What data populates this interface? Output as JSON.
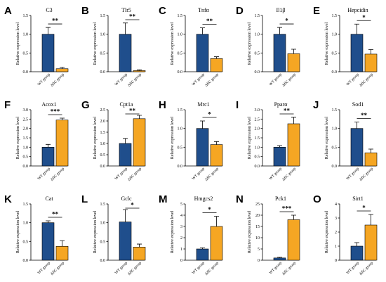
{
  "figure": {
    "category_labels": [
      "WT group",
      "ΔflC group"
    ]
  },
  "colors": {
    "wt": "#1f4e8c",
    "ko": "#f5a623"
  },
  "chart_data": [
    {
      "type": "bar",
      "panel": "A",
      "title": "C3",
      "ylabel": "Relative expression level",
      "ylim": [
        0,
        1.5
      ],
      "yticks": [
        "0.0",
        "0.5",
        "1.0",
        "1.5"
      ],
      "categories": [
        "WT group",
        "ΔflC group"
      ],
      "values": [
        1.0,
        0.08
      ],
      "errors": [
        0.18,
        0.04
      ],
      "significance": "**"
    },
    {
      "type": "bar",
      "panel": "B",
      "title": "Tlr5",
      "ylabel": "Relative expression level",
      "ylim": [
        0,
        1.5
      ],
      "yticks": [
        "0.0",
        "0.5",
        "1.0",
        "1.5"
      ],
      "categories": [
        "WT group",
        "ΔflC group"
      ],
      "values": [
        1.0,
        0.03
      ],
      "errors": [
        0.3,
        0.02
      ],
      "significance": "**"
    },
    {
      "type": "bar",
      "panel": "C",
      "title": "Tnfα",
      "ylabel": "Relative expression level",
      "ylim": [
        0,
        1.5
      ],
      "yticks": [
        "0.0",
        "0.5",
        "1.0",
        "1.5"
      ],
      "categories": [
        "WT group",
        "ΔflC group"
      ],
      "values": [
        1.0,
        0.35
      ],
      "errors": [
        0.17,
        0.05
      ],
      "significance": "**"
    },
    {
      "type": "bar",
      "panel": "D",
      "title": "Il1β",
      "ylabel": "Relative expression level",
      "ylim": [
        0,
        1.5
      ],
      "yticks": [
        "0.0",
        "0.5",
        "1.0",
        "1.5"
      ],
      "categories": [
        "WT group",
        "ΔflC group"
      ],
      "values": [
        1.0,
        0.48
      ],
      "errors": [
        0.18,
        0.12
      ],
      "significance": "*"
    },
    {
      "type": "bar",
      "panel": "E",
      "title": "Hepcidin",
      "ylabel": "Relative expression level",
      "ylim": [
        0,
        1.5
      ],
      "yticks": [
        "0.0",
        "0.5",
        "1.0",
        "1.5"
      ],
      "categories": [
        "WT group",
        "ΔflC group"
      ],
      "values": [
        1.0,
        0.47
      ],
      "errors": [
        0.27,
        0.12
      ],
      "significance": "*"
    },
    {
      "type": "bar",
      "panel": "F",
      "title": "Acox1",
      "ylabel": "Relative expression level",
      "ylim": [
        0,
        3.0
      ],
      "yticks": [
        "0.0",
        "0.5",
        "1.0",
        "1.5",
        "2.0",
        "2.5",
        "3.0"
      ],
      "categories": [
        "WT group",
        "ΔflC group"
      ],
      "values": [
        1.0,
        2.45
      ],
      "errors": [
        0.15,
        0.1
      ],
      "significance": "***"
    },
    {
      "type": "bar",
      "panel": "G",
      "title": "Cpt1a",
      "ylabel": "Relative expression level",
      "ylim": [
        0,
        2.5
      ],
      "yticks": [
        "0.0",
        "0.5",
        "1.0",
        "1.5",
        "2.0",
        "2.5"
      ],
      "categories": [
        "WT group",
        "ΔflC group"
      ],
      "values": [
        1.0,
        2.1
      ],
      "errors": [
        0.22,
        0.15
      ],
      "significance": "**"
    },
    {
      "type": "bar",
      "panel": "H",
      "title": "Mrc1",
      "ylabel": "Relative expression level",
      "ylim": [
        0,
        1.5
      ],
      "yticks": [
        "0.0",
        "0.5",
        "1.0",
        "1.5"
      ],
      "categories": [
        "WT group",
        "ΔflC group"
      ],
      "values": [
        1.0,
        0.57
      ],
      "errors": [
        0.2,
        0.08
      ],
      "significance": "*"
    },
    {
      "type": "bar",
      "panel": "I",
      "title": "Pparα",
      "ylabel": "Relative expression level",
      "ylim": [
        0,
        3.0
      ],
      "yticks": [
        "0.0",
        "0.5",
        "1.0",
        "1.5",
        "2.0",
        "2.5",
        "3.0"
      ],
      "categories": [
        "WT group",
        "ΔflC group"
      ],
      "values": [
        1.0,
        2.25
      ],
      "errors": [
        0.08,
        0.35
      ],
      "significance": "**"
    },
    {
      "type": "bar",
      "panel": "J",
      "title": "Sod1",
      "ylabel": "Relative expression level",
      "ylim": [
        0,
        1.5
      ],
      "yticks": [
        "0.0",
        "0.5",
        "1.0",
        "1.5"
      ],
      "categories": [
        "WT group",
        "ΔflC group"
      ],
      "values": [
        1.0,
        0.35
      ],
      "errors": [
        0.17,
        0.1
      ],
      "significance": "**"
    },
    {
      "type": "bar",
      "panel": "K",
      "title": "Cat",
      "ylabel": "Relative expression level",
      "ylim": [
        0,
        1.5
      ],
      "yticks": [
        "0.0",
        "0.5",
        "1.0",
        "1.5"
      ],
      "categories": [
        "WT group",
        "ΔflC group"
      ],
      "values": [
        1.0,
        0.37
      ],
      "errors": [
        0.05,
        0.15
      ],
      "significance": "**"
    },
    {
      "type": "bar",
      "panel": "L",
      "title": "Gclc",
      "ylabel": "Relative expression level",
      "ylim": [
        0,
        1.5
      ],
      "yticks": [
        "0.0",
        "0.5",
        "1.0",
        "1.5"
      ],
      "categories": [
        "WT group",
        "ΔflC group"
      ],
      "values": [
        1.02,
        0.35
      ],
      "errors": [
        0.33,
        0.08
      ],
      "significance": "*"
    },
    {
      "type": "bar",
      "panel": "M",
      "title": "Hmgcs2",
      "ylabel": "Relative expression level",
      "ylim": [
        0,
        5
      ],
      "yticks": [
        "0",
        "1",
        "2",
        "3",
        "4",
        "5"
      ],
      "categories": [
        "WT group",
        "ΔflC group"
      ],
      "values": [
        1.0,
        3.0
      ],
      "errors": [
        0.1,
        0.9
      ],
      "significance": "*"
    },
    {
      "type": "bar",
      "panel": "N",
      "title": "Pck1",
      "ylabel": "Relative expression level",
      "ylim": [
        0,
        25
      ],
      "yticks": [
        "0",
        "5",
        "10",
        "15",
        "20",
        "25"
      ],
      "categories": [
        "WT group",
        "ΔflC group"
      ],
      "values": [
        1.0,
        18.0
      ],
      "errors": [
        0.3,
        2.0
      ],
      "significance": "***"
    },
    {
      "type": "bar",
      "panel": "O",
      "title": "Sirt1",
      "ylabel": "Relative expression level",
      "ylim": [
        0,
        4
      ],
      "yticks": [
        "0",
        "1",
        "2",
        "3",
        "4"
      ],
      "categories": [
        "WT group",
        "ΔflC group"
      ],
      "values": [
        1.0,
        2.5
      ],
      "errors": [
        0.25,
        0.75
      ],
      "significance": "*"
    }
  ]
}
